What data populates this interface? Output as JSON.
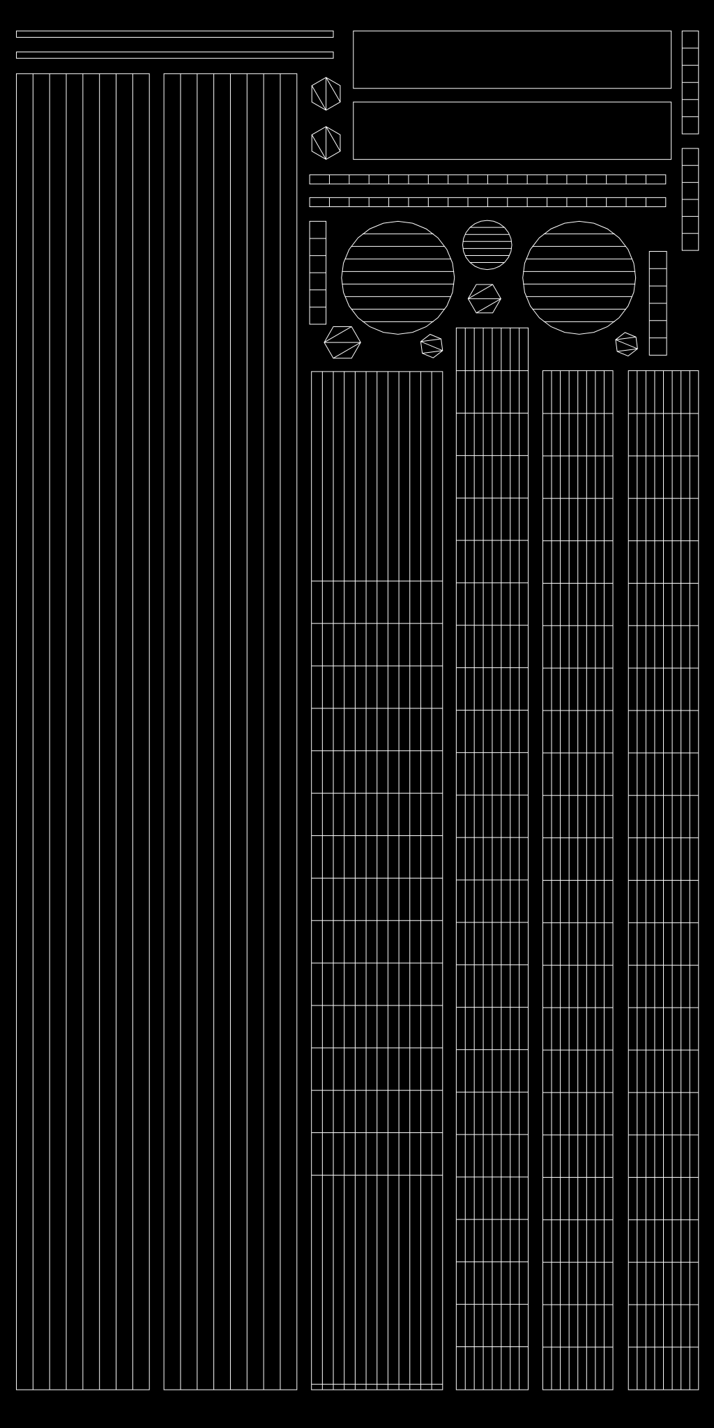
{
  "colors": {
    "background": "#000000",
    "stroke": "#ffffff"
  }
}
